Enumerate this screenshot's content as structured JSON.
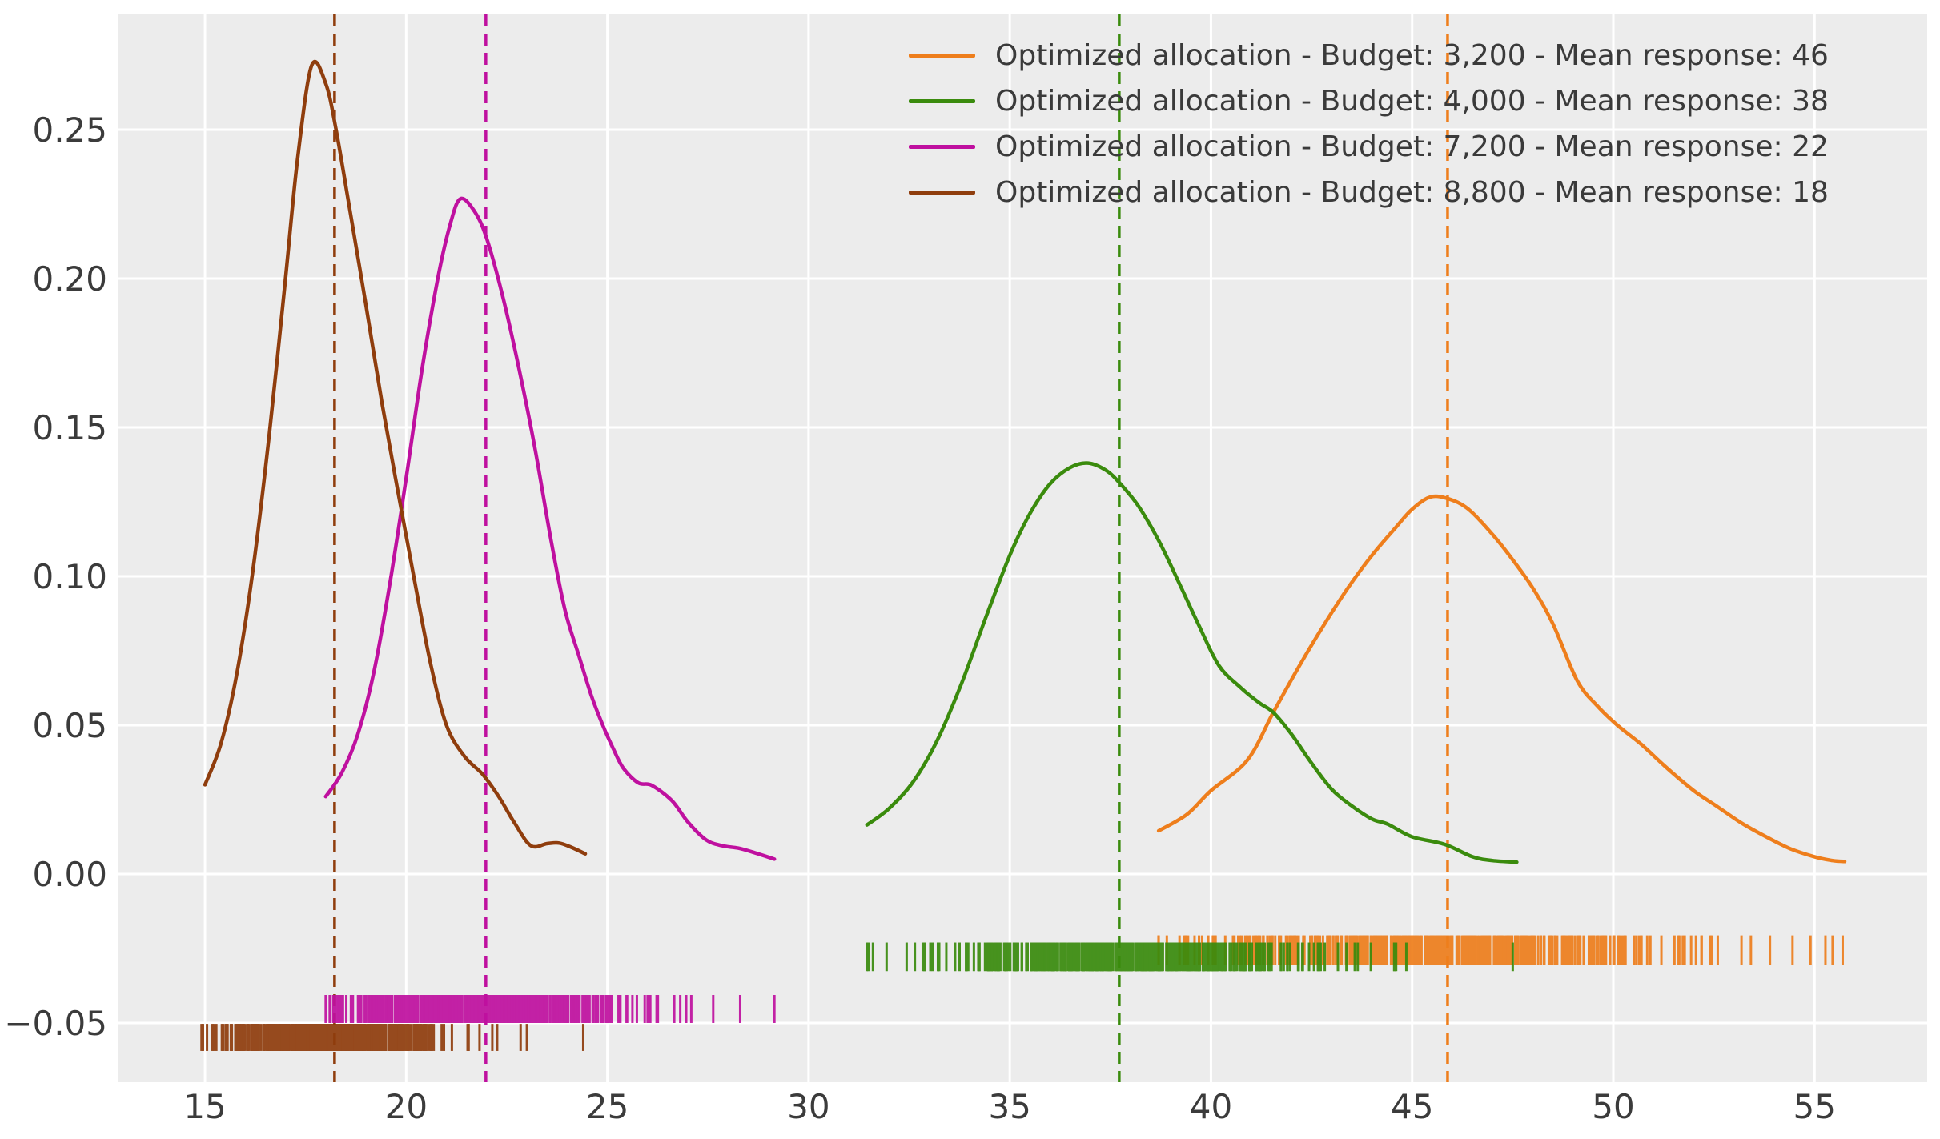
{
  "styles": {
    "figure_bg": "#ffffff",
    "panel_bg": "#ececec",
    "grid_color": "#ffffff",
    "tick_text_color": "#3b3b3b",
    "legend_text_color": "#3a3a3a"
  },
  "chart_data": {
    "type": "line",
    "subtype": "kde-with-rug",
    "title": "",
    "xlabel": "",
    "ylabel": "",
    "xlim": [
      12.85,
      57.8
    ],
    "ylim": [
      -0.0699,
      0.2887
    ],
    "grid": true,
    "legend_position": "upper right",
    "x_ticks": [
      15,
      20,
      25,
      30,
      35,
      40,
      45,
      50,
      55
    ],
    "x_tick_labels": [
      "15",
      "20",
      "25",
      "30",
      "35",
      "40",
      "45",
      "50",
      "55"
    ],
    "y_ticks": [
      -0.05,
      0,
      0.05,
      0.1,
      0.15,
      0.2,
      0.25
    ],
    "y_tick_labels": [
      "−0.05",
      "0.00",
      "0.05",
      "0.10",
      "0.15",
      "0.20",
      "0.25"
    ],
    "series": [
      {
        "name": "Optimized allocation - Budget: 3,200 - Mean response: 46",
        "budget": "3,200",
        "mean_response": 46,
        "color": "#ee7e1c",
        "mean_line_x": 45.88,
        "kde": [
          [
            38.7,
            0.0145
          ],
          [
            39.4,
            0.02
          ],
          [
            40.0,
            0.028
          ],
          [
            40.9,
            0.0382
          ],
          [
            41.55,
            0.0543
          ],
          [
            42.2,
            0.07
          ],
          [
            42.8,
            0.0835
          ],
          [
            43.4,
            0.096
          ],
          [
            44.0,
            0.107
          ],
          [
            44.6,
            0.1165
          ],
          [
            45.0,
            0.1225
          ],
          [
            45.45,
            0.1266
          ],
          [
            45.9,
            0.126
          ],
          [
            46.4,
            0.1225
          ],
          [
            47.0,
            0.114
          ],
          [
            47.5,
            0.1055
          ],
          [
            48.0,
            0.096
          ],
          [
            48.5,
            0.084
          ],
          [
            49.1,
            0.065
          ],
          [
            49.6,
            0.0565
          ],
          [
            50.1,
            0.05
          ],
          [
            50.7,
            0.0435
          ],
          [
            51.3,
            0.036
          ],
          [
            52.0,
            0.028
          ],
          [
            52.6,
            0.0225
          ],
          [
            53.2,
            0.017
          ],
          [
            53.8,
            0.0125
          ],
          [
            54.4,
            0.0085
          ],
          [
            55.0,
            0.0058
          ],
          [
            55.45,
            0.0045
          ],
          [
            55.75,
            0.0042
          ]
        ],
        "rug": {
          "mean": 45.9,
          "sd": 3.1,
          "min": 38.65,
          "max": 55.75,
          "count": 420,
          "seed": 7,
          "band_top": -0.0206,
          "band_bottom": -0.0304,
          "outliers": [
            38.7,
            54.9,
            55.45,
            55.7
          ]
        }
      },
      {
        "name": "Optimized allocation - Budget: 4,000 - Mean response: 38",
        "budget": "4,000",
        "mean_response": 38,
        "color": "#3a8b0d",
        "mean_line_x": 37.72,
        "kde": [
          [
            31.45,
            0.0165
          ],
          [
            32.0,
            0.022
          ],
          [
            32.6,
            0.031
          ],
          [
            33.2,
            0.045
          ],
          [
            33.8,
            0.064
          ],
          [
            34.4,
            0.086
          ],
          [
            35.0,
            0.107
          ],
          [
            35.5,
            0.121
          ],
          [
            36.0,
            0.131
          ],
          [
            36.5,
            0.1365
          ],
          [
            36.95,
            0.138
          ],
          [
            37.4,
            0.1355
          ],
          [
            37.75,
            0.131
          ],
          [
            38.2,
            0.1235
          ],
          [
            38.7,
            0.112
          ],
          [
            39.2,
            0.098
          ],
          [
            39.7,
            0.0835
          ],
          [
            40.2,
            0.07
          ],
          [
            40.75,
            0.0625
          ],
          [
            41.2,
            0.0575
          ],
          [
            41.55,
            0.0543
          ],
          [
            42.0,
            0.047
          ],
          [
            42.45,
            0.0382
          ],
          [
            43.0,
            0.0285
          ],
          [
            43.5,
            0.0229
          ],
          [
            44.0,
            0.0185
          ],
          [
            44.4,
            0.0167
          ],
          [
            45.0,
            0.0125
          ],
          [
            45.8,
            0.01
          ],
          [
            46.5,
            0.0058
          ],
          [
            47.0,
            0.0045
          ],
          [
            47.6,
            0.004
          ]
        ],
        "rug": {
          "mean": 37.75,
          "sd": 2.65,
          "min": 31.4,
          "max": 47.55,
          "count": 420,
          "seed": 13,
          "band_top": -0.023,
          "band_bottom": -0.0326,
          "outliers": [
            31.45,
            31.6,
            47.5
          ]
        }
      },
      {
        "name": "Optimized allocation - Budget: 7,200 - Mean response: 22",
        "budget": "7,200",
        "mean_response": 22,
        "color": "#bf109f",
        "mean_line_x": 21.98,
        "kde": [
          [
            18.0,
            0.026
          ],
          [
            18.4,
            0.034
          ],
          [
            18.8,
            0.047
          ],
          [
            19.2,
            0.068
          ],
          [
            19.6,
            0.098
          ],
          [
            20.0,
            0.133
          ],
          [
            20.4,
            0.17
          ],
          [
            20.8,
            0.201
          ],
          [
            21.1,
            0.2185
          ],
          [
            21.35,
            0.2268
          ],
          [
            21.7,
            0.2225
          ],
          [
            22.0,
            0.2135
          ],
          [
            22.4,
            0.194
          ],
          [
            22.8,
            0.17
          ],
          [
            23.2,
            0.143
          ],
          [
            23.6,
            0.112
          ],
          [
            23.95,
            0.0885
          ],
          [
            24.3,
            0.073
          ],
          [
            24.6,
            0.06
          ],
          [
            24.9,
            0.0495
          ],
          [
            25.15,
            0.042
          ],
          [
            25.4,
            0.0355
          ],
          [
            25.77,
            0.0306
          ],
          [
            26.1,
            0.0298
          ],
          [
            26.6,
            0.0247
          ],
          [
            27.0,
            0.0175
          ],
          [
            27.45,
            0.0115
          ],
          [
            27.85,
            0.0095
          ],
          [
            28.25,
            0.0087
          ],
          [
            28.65,
            0.0072
          ],
          [
            29.15,
            0.005
          ]
        ],
        "rug": {
          "mean": 21.9,
          "sd": 1.95,
          "min": 17.95,
          "max": 29.2,
          "count": 420,
          "seed": 29,
          "band_top": -0.0406,
          "band_bottom": -0.05,
          "outliers": [
            18.0,
            18.1,
            28.3,
            29.15
          ]
        }
      },
      {
        "name": "Optimized allocation - Budget: 8,800 - Mean response: 18",
        "budget": "8,800",
        "mean_response": 18,
        "color": "#8f3d0d",
        "mean_line_x": 18.22,
        "kde": [
          [
            15.0,
            0.03
          ],
          [
            15.4,
            0.044
          ],
          [
            15.8,
            0.068
          ],
          [
            16.2,
            0.103
          ],
          [
            16.6,
            0.148
          ],
          [
            17.0,
            0.2
          ],
          [
            17.3,
            0.24
          ],
          [
            17.65,
            0.2715
          ],
          [
            18.0,
            0.2655
          ],
          [
            18.25,
            0.2505
          ],
          [
            18.6,
            0.223
          ],
          [
            19.0,
            0.191
          ],
          [
            19.4,
            0.158
          ],
          [
            19.8,
            0.128
          ],
          [
            20.2,
            0.099
          ],
          [
            20.6,
            0.071
          ],
          [
            21.0,
            0.05
          ],
          [
            21.45,
            0.0395
          ],
          [
            21.9,
            0.0335
          ],
          [
            22.3,
            0.026
          ],
          [
            22.7,
            0.017
          ],
          [
            23.1,
            0.0095
          ],
          [
            23.5,
            0.0102
          ],
          [
            23.8,
            0.0104
          ],
          [
            24.1,
            0.009
          ],
          [
            24.45,
            0.0068
          ]
        ],
        "rug": {
          "mean": 18.25,
          "sd": 1.4,
          "min": 14.9,
          "max": 24.45,
          "count": 420,
          "seed": 41,
          "band_top": -0.0503,
          "band_bottom": -0.0594,
          "outliers": [
            14.95,
            15.05,
            23.0,
            24.4
          ]
        }
      }
    ]
  }
}
